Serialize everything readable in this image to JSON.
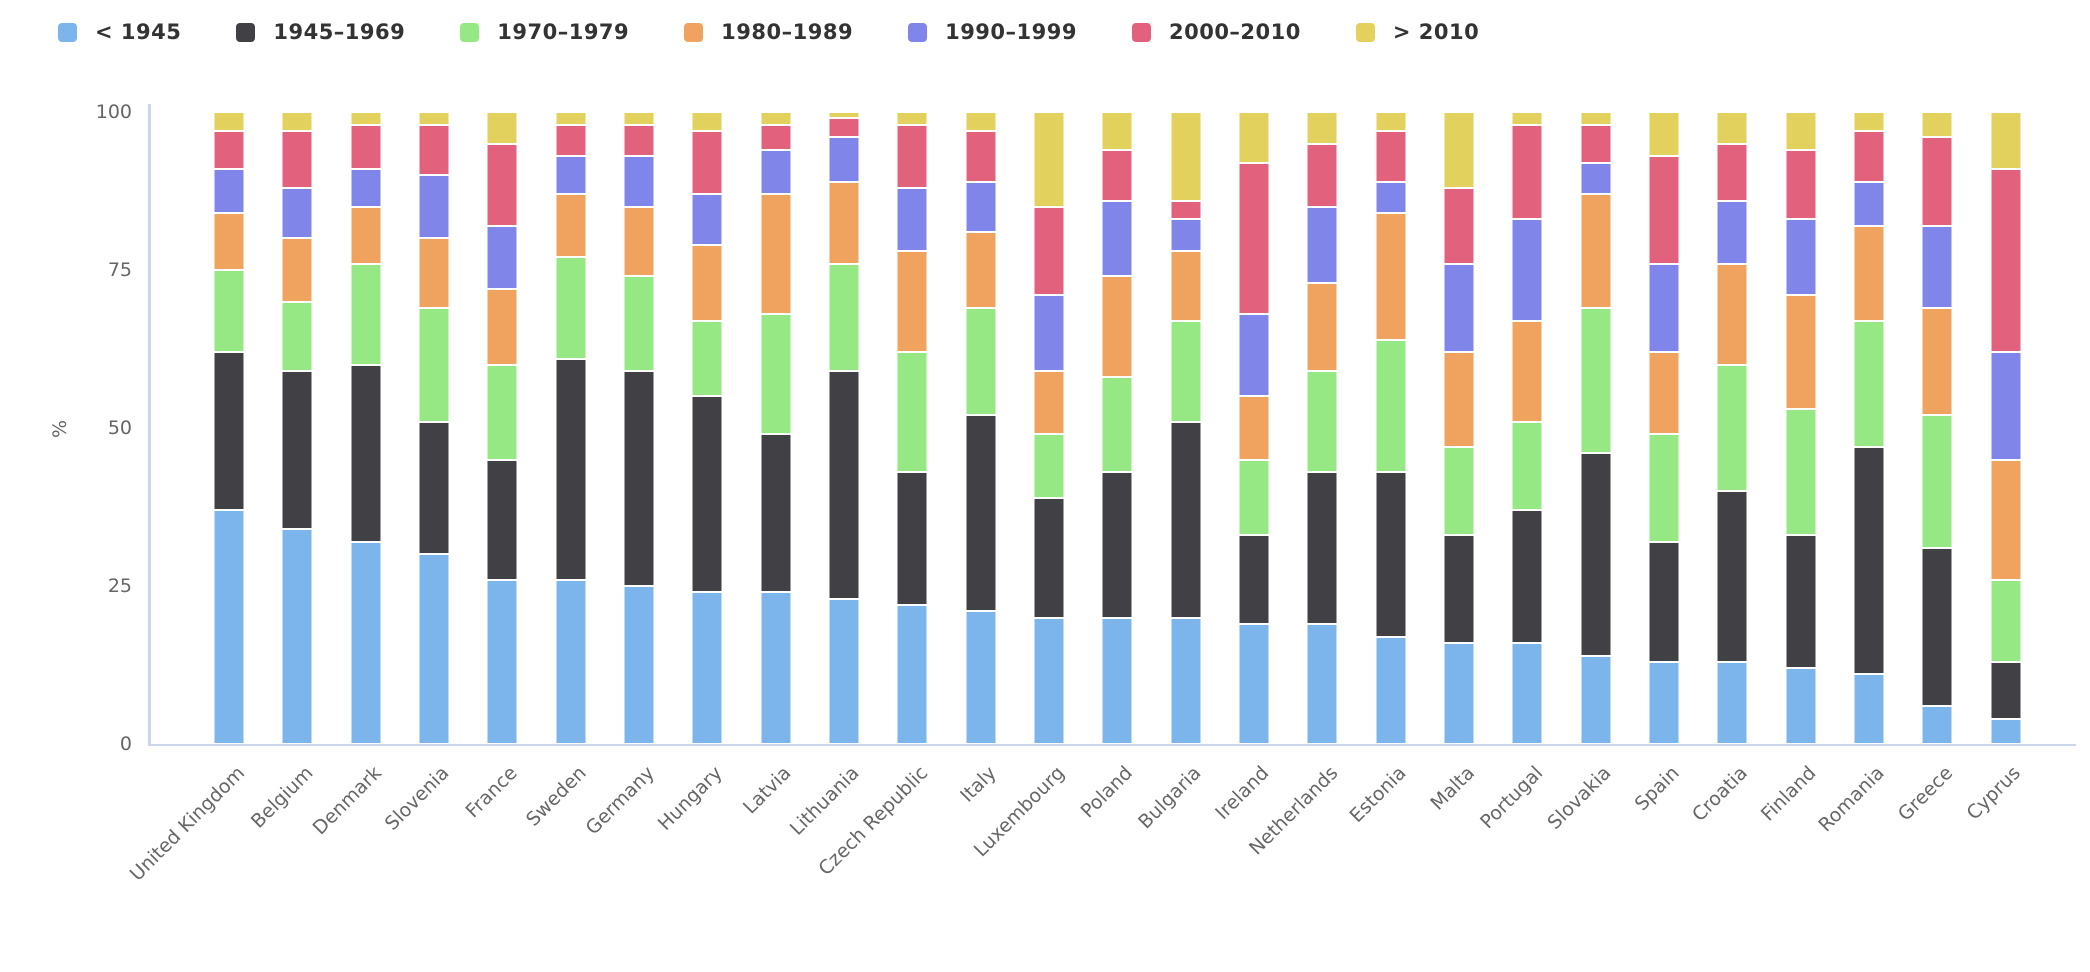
{
  "chart_data": {
    "type": "bar",
    "variant": "stacked-percent-column",
    "title": "",
    "xlabel": "",
    "ylabel": "%",
    "ylim": [
      0,
      100
    ],
    "yticks": [
      0,
      25,
      50,
      75,
      100
    ],
    "grid": false,
    "legend_position": "top",
    "axis_color": "#ccd6eb",
    "categories": [
      "United Kingdom",
      "Belgium",
      "Denmark",
      "Slovenia",
      "France",
      "Sweden",
      "Germany",
      "Hungary",
      "Latvia",
      "Lithuania",
      "Czech Republic",
      "Italy",
      "Luxembourg",
      "Poland",
      "Bulgaria",
      "Ireland",
      "Netherlands",
      "Estonia",
      "Malta",
      "Portugal",
      "Slovakia",
      "Spain",
      "Croatia",
      "Finland",
      "Romania",
      "Greece",
      "Cyprus"
    ],
    "series": [
      {
        "name": "< 1945",
        "color": "#7cb5ec",
        "values": [
          37,
          34,
          32,
          30,
          26,
          26,
          25,
          24,
          24,
          23,
          22,
          21,
          20,
          20,
          20,
          19,
          19,
          17,
          16,
          16,
          14,
          13,
          13,
          12,
          11,
          6,
          4
        ]
      },
      {
        "name": "1945–1969",
        "color": "#404045",
        "values": [
          25,
          25,
          28,
          21,
          19,
          35,
          34,
          31,
          25,
          36,
          21,
          31,
          19,
          23,
          31,
          14,
          24,
          26,
          17,
          21,
          32,
          19,
          27,
          21,
          36,
          25,
          9
        ]
      },
      {
        "name": "1970–1979",
        "color": "#96e885",
        "values": [
          13,
          11,
          16,
          18,
          15,
          16,
          15,
          12,
          19,
          17,
          19,
          17,
          10,
          15,
          16,
          12,
          16,
          21,
          14,
          14,
          23,
          17,
          20,
          20,
          20,
          21,
          13
        ]
      },
      {
        "name": "1980–1989",
        "color": "#f0a25f",
        "values": [
          9,
          10,
          9,
          11,
          12,
          10,
          11,
          12,
          19,
          13,
          16,
          12,
          10,
          16,
          11,
          10,
          14,
          20,
          15,
          16,
          18,
          13,
          16,
          18,
          15,
          17,
          19
        ]
      },
      {
        "name": "1990–1999",
        "color": "#8085e9",
        "values": [
          7,
          8,
          6,
          10,
          10,
          6,
          8,
          8,
          7,
          7,
          10,
          8,
          12,
          12,
          5,
          13,
          12,
          5,
          14,
          16,
          5,
          14,
          10,
          12,
          7,
          13,
          17
        ]
      },
      {
        "name": "2000–2010",
        "color": "#e2617c",
        "values": [
          6,
          9,
          7,
          8,
          13,
          5,
          5,
          10,
          4,
          3,
          10,
          8,
          14,
          8,
          3,
          24,
          10,
          8,
          12,
          15,
          6,
          17,
          9,
          11,
          8,
          14,
          29
        ]
      },
      {
        "name": "> 2010",
        "color": "#e2d15c",
        "values": [
          3,
          3,
          2,
          2,
          5,
          2,
          2,
          3,
          2,
          1,
          2,
          3,
          15,
          6,
          14,
          8,
          5,
          3,
          12,
          2,
          2,
          7,
          5,
          6,
          3,
          4,
          9
        ]
      }
    ]
  }
}
